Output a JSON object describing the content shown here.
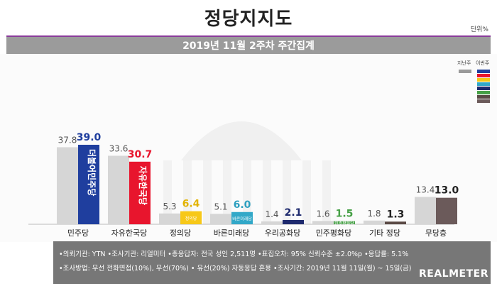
{
  "title": "정당지지도",
  "unit_label": "단위%",
  "subtitle": "2019년 11월 2주차 주간집계",
  "legend": {
    "prev_label": "지난주",
    "curr_label": "이번주"
  },
  "colors": {
    "prev": "#d6d6d6",
    "curr": [
      "#1f3e9e",
      "#e8152d",
      "#f7c818",
      "#32a8c8",
      "#1e2a6e",
      "#46a046",
      "#5a4a45",
      "#6b5a5a"
    ],
    "curr_text": [
      "#1f3e9e",
      "#e8152d",
      "#e2b300",
      "#2d9fbf",
      "#1e2a6e",
      "#46a046",
      "#222222",
      "#222222"
    ]
  },
  "chart_data": {
    "type": "bar",
    "categories": [
      "민주당",
      "자유한국당",
      "정의당",
      "바른미래당",
      "우리공화당",
      "민주평화당",
      "기타 정당",
      "무당층"
    ],
    "series": [
      {
        "name": "지난주",
        "values": [
          37.8,
          33.6,
          5.3,
          5.1,
          1.4,
          1.6,
          1.8,
          13.4
        ]
      },
      {
        "name": "이번주",
        "values": [
          39.0,
          30.7,
          6.4,
          6.0,
          2.1,
          1.5,
          1.3,
          13.0
        ]
      }
    ],
    "prev_labels": [
      "37.8",
      "33.6",
      "5.3",
      "5.1",
      "1.4",
      "1.6",
      "1.8",
      "13.4"
    ],
    "curr_labels": [
      "39.0",
      "30.7",
      "6.4",
      "6.0",
      "2.1",
      "1.5",
      "1.3",
      "13.0"
    ],
    "bar_texts": [
      "더불어민주당",
      "자유한국당",
      "정의당",
      "바른미래당",
      "",
      "민주평화당",
      "",
      ""
    ],
    "ylim": [
      0,
      45
    ],
    "legend_position": "top-right"
  },
  "footer": {
    "line1": "•의뢰기관: YTN  •조사기관: 리얼미터  •총응답자: 전국 성인 2,511명  •표집오차: 95% 신뢰수준 ±2.0%p  •응답률: 5.1%",
    "line2": "•조사방법: 무선 전화면접(10%), 무선(70%) • 유선(20%) 자동응답 혼용  •조사기간: 2019년 11월 11일(월) ~ 15일(금)",
    "logo": "REALMETER"
  }
}
